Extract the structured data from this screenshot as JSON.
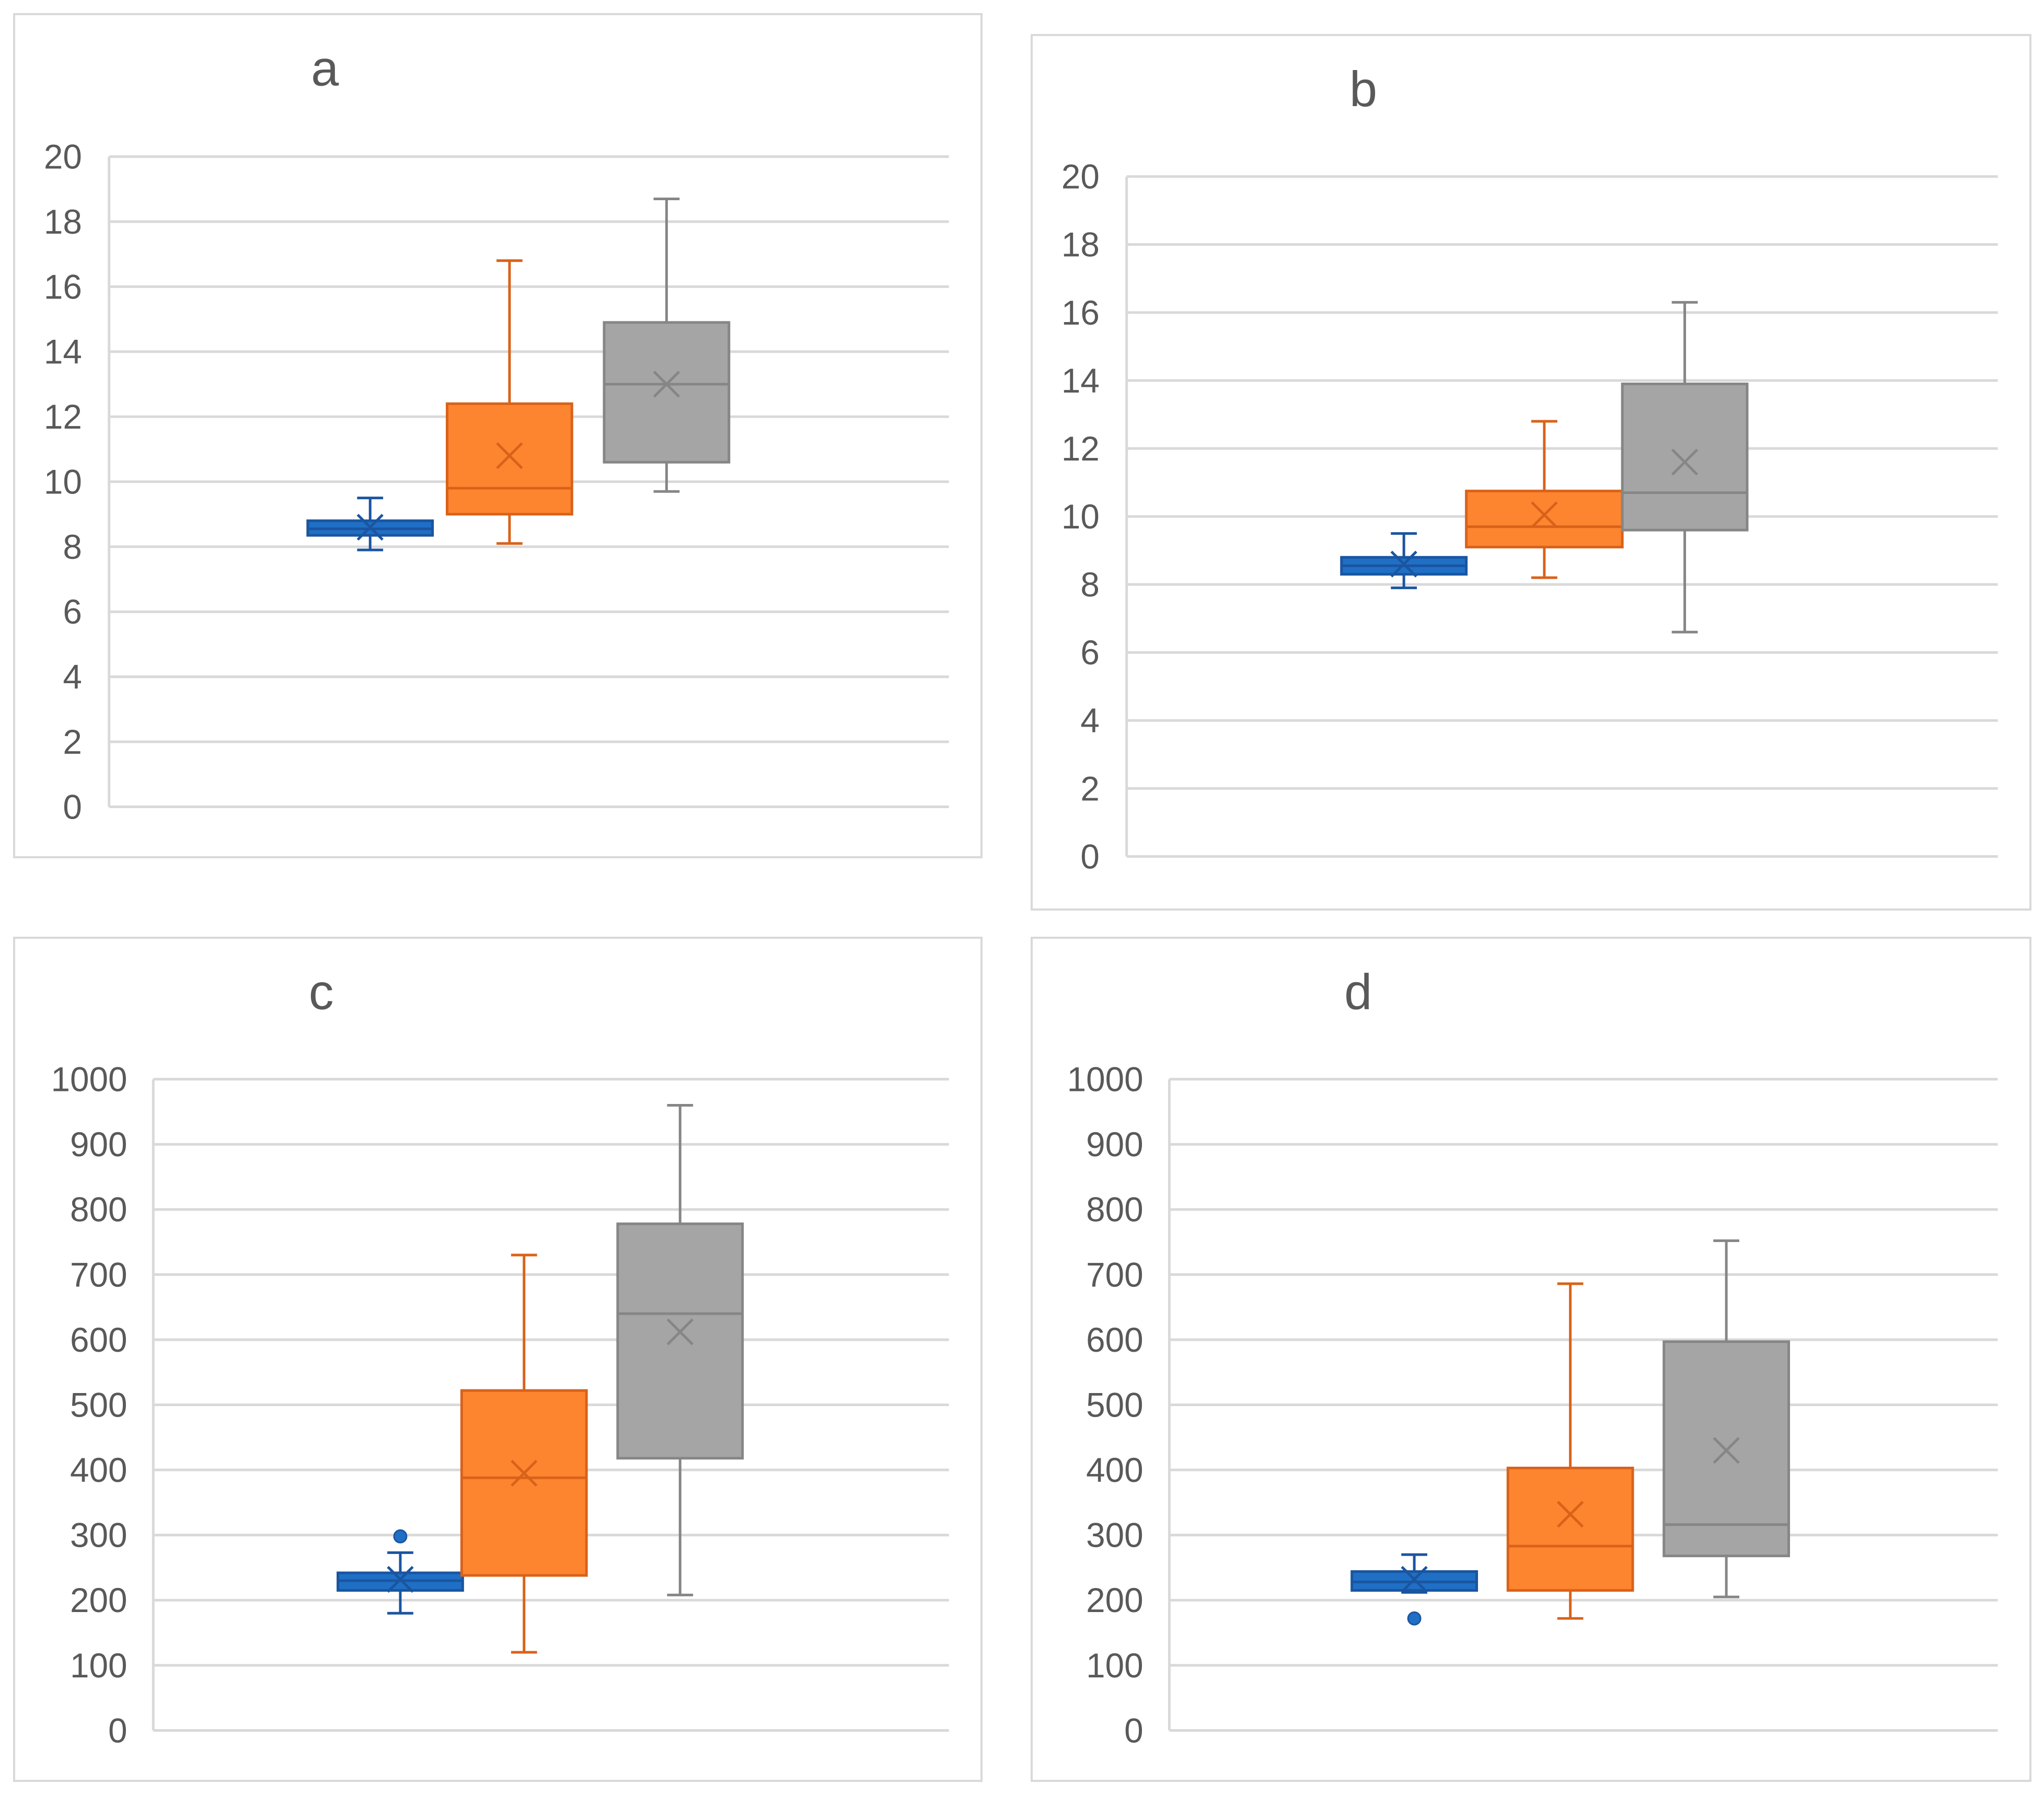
{
  "chart_data": [
    {
      "type": "box",
      "title": "a",
      "ylim": [
        0,
        20
      ],
      "yticks": [
        "0",
        "2",
        "4",
        "6",
        "8",
        "10",
        "12",
        "14",
        "16",
        "18",
        "20"
      ],
      "grid": true,
      "series": [
        {
          "color": "#1f6fc5",
          "stroke": "#1a55a0",
          "min": 7.9,
          "q1": 8.35,
          "median": 8.55,
          "q3": 8.8,
          "max": 9.5,
          "mean": 8.6,
          "outliers": []
        },
        {
          "color": "#fd8530",
          "stroke": "#d9621a",
          "min": 8.1,
          "q1": 9.0,
          "median": 9.8,
          "q3": 12.4,
          "max": 16.8,
          "mean": 10.8,
          "outliers": []
        },
        {
          "color": "#a5a5a5",
          "stroke": "#868686",
          "min": 9.7,
          "q1": 10.6,
          "median": 13.0,
          "q3": 14.9,
          "max": 18.7,
          "mean": 13.0,
          "outliers": []
        }
      ]
    },
    {
      "type": "box",
      "title": "b",
      "ylim": [
        0,
        20
      ],
      "yticks": [
        "0",
        "2",
        "4",
        "6",
        "8",
        "10",
        "12",
        "14",
        "16",
        "18",
        "20"
      ],
      "grid": true,
      "series": [
        {
          "color": "#1f6fc5",
          "stroke": "#1a55a0",
          "min": 7.9,
          "q1": 8.3,
          "median": 8.55,
          "q3": 8.8,
          "max": 9.5,
          "mean": 8.6,
          "outliers": []
        },
        {
          "color": "#fd8530",
          "stroke": "#d9621a",
          "min": 8.2,
          "q1": 9.1,
          "median": 9.7,
          "q3": 10.75,
          "max": 12.8,
          "mean": 10.05,
          "outliers": []
        },
        {
          "color": "#a5a5a5",
          "stroke": "#868686",
          "min": 6.6,
          "q1": 9.6,
          "median": 10.7,
          "q3": 13.9,
          "max": 16.3,
          "mean": 11.6,
          "outliers": []
        }
      ]
    },
    {
      "type": "box",
      "title": "c",
      "ylim": [
        0,
        1000
      ],
      "yticks": [
        "0",
        "100",
        "200",
        "300",
        "400",
        "500",
        "600",
        "700",
        "800",
        "900",
        "1000"
      ],
      "grid": true,
      "series": [
        {
          "color": "#1f6fc5",
          "stroke": "#1a55a0",
          "min": 180,
          "q1": 215,
          "median": 230,
          "q3": 242,
          "max": 273,
          "mean": 232,
          "outliers": [
            298
          ]
        },
        {
          "color": "#fd8530",
          "stroke": "#d9621a",
          "min": 120,
          "q1": 238,
          "median": 388,
          "q3": 522,
          "max": 730,
          "mean": 395,
          "outliers": []
        },
        {
          "color": "#a5a5a5",
          "stroke": "#868686",
          "min": 208,
          "q1": 418,
          "median": 640,
          "q3": 778,
          "max": 960,
          "mean": 612,
          "outliers": []
        }
      ]
    },
    {
      "type": "box",
      "title": "d",
      "ylim": [
        0,
        1000
      ],
      "yticks": [
        "0",
        "100",
        "200",
        "300",
        "400",
        "500",
        "600",
        "700",
        "800",
        "900",
        "1000"
      ],
      "grid": true,
      "series": [
        {
          "color": "#1f6fc5",
          "stroke": "#1a55a0",
          "min": 212,
          "q1": 215,
          "median": 228,
          "q3": 244,
          "max": 270,
          "mean": 232,
          "outliers": [
            172
          ]
        },
        {
          "color": "#fd8530",
          "stroke": "#d9621a",
          "min": 172,
          "q1": 215,
          "median": 283,
          "q3": 403,
          "max": 686,
          "mean": 332,
          "outliers": []
        },
        {
          "color": "#a5a5a5",
          "stroke": "#868686",
          "min": 205,
          "q1": 268,
          "median": 316,
          "q3": 597,
          "max": 752,
          "mean": 430,
          "outliers": []
        }
      ]
    }
  ]
}
